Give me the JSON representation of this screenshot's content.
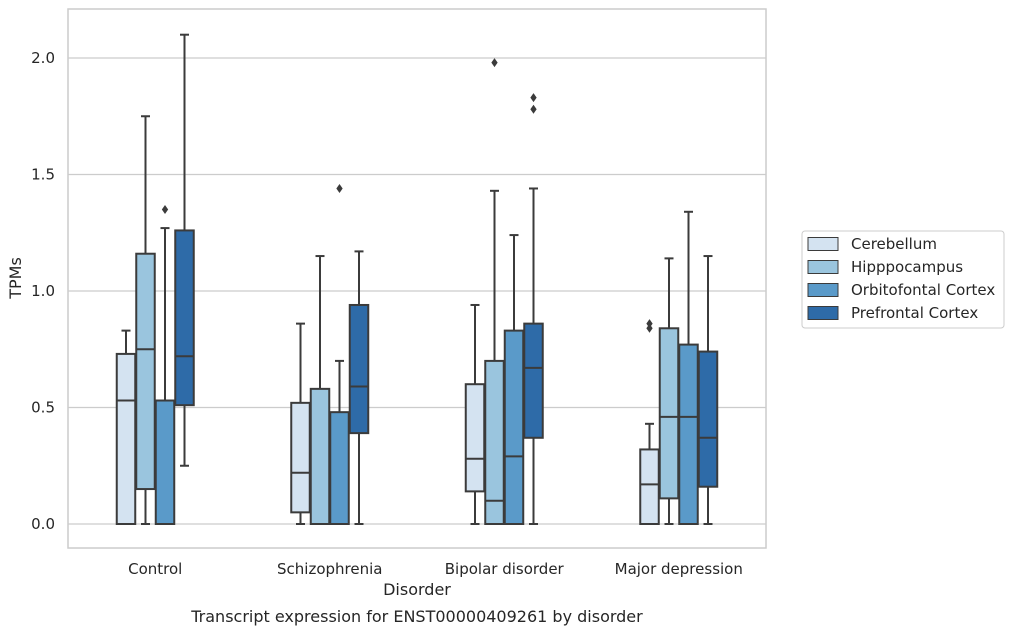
{
  "chart_data": {
    "type": "box",
    "caption": "Transcript expression for ENST00000409261 by disorder",
    "xlabel": "Disorder",
    "ylabel": "TPMs",
    "ylim": [
      -0.1,
      2.22
    ],
    "yticks": [
      0.0,
      0.5,
      1.0,
      1.5,
      2.0
    ],
    "ytick_labels": [
      "0.0",
      "0.5",
      "1.0",
      "1.5",
      "2.0"
    ],
    "grid": "horizontal",
    "legend_position": "right",
    "categories": [
      "Control",
      "Schizophrenia",
      "Bipolar disorder",
      "Major depression"
    ],
    "series": [
      {
        "name": "Cerebellum",
        "color": "#d4e3f1",
        "boxes": [
          {
            "whislo": 0.0,
            "q1": 0.0,
            "med": 0.53,
            "q3": 0.73,
            "whishi": 0.83,
            "fliers": []
          },
          {
            "whislo": 0.0,
            "q1": 0.05,
            "med": 0.22,
            "q3": 0.52,
            "whishi": 0.86,
            "fliers": []
          },
          {
            "whislo": 0.0,
            "q1": 0.14,
            "med": 0.28,
            "q3": 0.6,
            "whishi": 0.94,
            "fliers": []
          },
          {
            "whislo": 0.0,
            "q1": 0.0,
            "med": 0.17,
            "q3": 0.32,
            "whishi": 0.43,
            "fliers": [
              0.84,
              0.86
            ]
          }
        ]
      },
      {
        "name": "Hipppocampus",
        "color": "#9ac5de",
        "boxes": [
          {
            "whislo": 0.0,
            "q1": 0.15,
            "med": 0.75,
            "q3": 1.16,
            "whishi": 1.75,
            "fliers": []
          },
          {
            "whislo": 0.0,
            "q1": 0.0,
            "med": 0.0,
            "q3": 0.58,
            "whishi": 1.15,
            "fliers": []
          },
          {
            "whislo": 0.0,
            "q1": 0.0,
            "med": 0.1,
            "q3": 0.7,
            "whishi": 1.43,
            "fliers": [
              1.98
            ]
          },
          {
            "whislo": 0.0,
            "q1": 0.11,
            "med": 0.46,
            "q3": 0.84,
            "whishi": 1.14,
            "fliers": []
          }
        ]
      },
      {
        "name": "Orbitofontal Cortex",
        "color": "#5a9ac9",
        "boxes": [
          {
            "whislo": 0.0,
            "q1": 0.0,
            "med": 0.0,
            "q3": 0.53,
            "whishi": 1.27,
            "fliers": [
              1.35
            ]
          },
          {
            "whislo": 0.0,
            "q1": 0.0,
            "med": 0.0,
            "q3": 0.48,
            "whishi": 0.7,
            "fliers": [
              1.44
            ]
          },
          {
            "whislo": 0.0,
            "q1": 0.0,
            "med": 0.29,
            "q3": 0.83,
            "whishi": 1.24,
            "fliers": []
          },
          {
            "whislo": 0.0,
            "q1": 0.0,
            "med": 0.46,
            "q3": 0.77,
            "whishi": 1.34,
            "fliers": []
          }
        ]
      },
      {
        "name": "Prefrontal Cortex",
        "color": "#2e6ba8",
        "boxes": [
          {
            "whislo": 0.25,
            "q1": 0.51,
            "med": 0.72,
            "q3": 1.26,
            "whishi": 2.1,
            "fliers": []
          },
          {
            "whislo": 0.0,
            "q1": 0.39,
            "med": 0.59,
            "q3": 0.94,
            "whishi": 1.17,
            "fliers": []
          },
          {
            "whislo": 0.0,
            "q1": 0.37,
            "med": 0.67,
            "q3": 0.86,
            "whishi": 1.44,
            "fliers": [
              1.78,
              1.83
            ]
          },
          {
            "whislo": 0.0,
            "q1": 0.16,
            "med": 0.37,
            "q3": 0.74,
            "whishi": 1.15,
            "fliers": []
          }
        ]
      }
    ]
  }
}
